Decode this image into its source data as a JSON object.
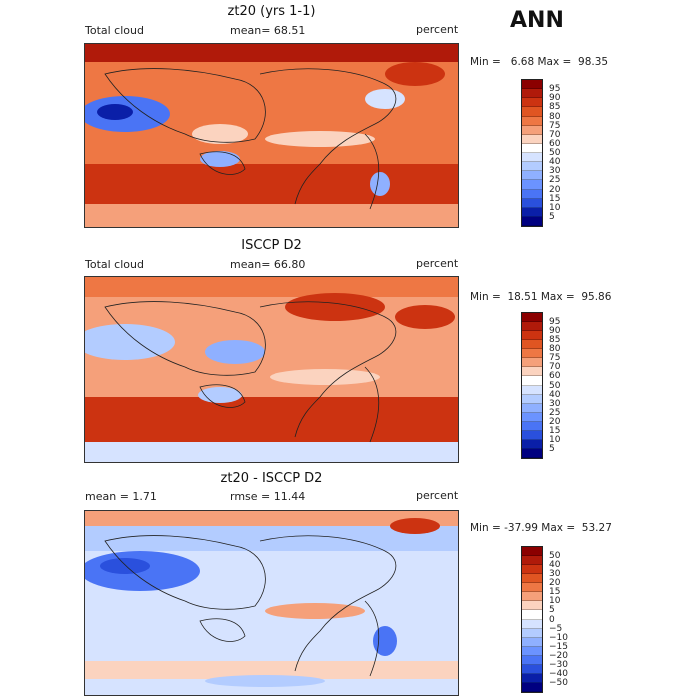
{
  "header": {
    "season": "ANN"
  },
  "panels": [
    {
      "title": "zt20 (yrs 1-1)",
      "left_label": "Total cloud",
      "mid_label": "mean=  68.51",
      "right_label": "percent",
      "minmax": "Min =   6.68 Max =  98.35",
      "legend": [
        "95",
        "90",
        "85",
        "80",
        "75",
        "70",
        "60",
        "50",
        "40",
        "30",
        "25",
        "20",
        "15",
        "10",
        "5"
      ],
      "colors": [
        "#8b0000",
        "#b01a0a",
        "#cc3311",
        "#e05522",
        "#ee7744",
        "#f5a07a",
        "#fbd3bf",
        "#ffffff",
        "#d6e3ff",
        "#b3ccff",
        "#8fb0ff",
        "#6b93ff",
        "#4a74f5",
        "#2a50dd",
        "#0a1fa8",
        "#000080"
      ]
    },
    {
      "title": "ISCCP D2",
      "left_label": "Total cloud",
      "mid_label": "mean=  66.80",
      "right_label": "percent",
      "minmax": "Min =  18.51 Max =  95.86",
      "legend": [
        "95",
        "90",
        "85",
        "80",
        "75",
        "70",
        "60",
        "50",
        "40",
        "30",
        "25",
        "20",
        "15",
        "10",
        "5"
      ],
      "colors": [
        "#8b0000",
        "#b01a0a",
        "#cc3311",
        "#e05522",
        "#ee7744",
        "#f5a07a",
        "#fbd3bf",
        "#ffffff",
        "#d6e3ff",
        "#b3ccff",
        "#8fb0ff",
        "#6b93ff",
        "#4a74f5",
        "#2a50dd",
        "#0a1fa8",
        "#000080"
      ]
    },
    {
      "title": "zt20 - ISCCP D2",
      "left_label": "mean =    1.71",
      "mid_label": "rmse =  11.44",
      "right_label": "percent",
      "minmax": "Min = -37.99 Max =  53.27",
      "legend": [
        "50",
        "40",
        "30",
        "20",
        "15",
        "10",
        "5",
        "0",
        "−5",
        "−10",
        "−15",
        "−20",
        "−30",
        "−40",
        "−50"
      ],
      "colors": [
        "#8b0000",
        "#b01a0a",
        "#cc3311",
        "#e05522",
        "#ee7744",
        "#f5a07a",
        "#fbd3bf",
        "#ffffff",
        "#d6e3ff",
        "#b3ccff",
        "#8fb0ff",
        "#6b93ff",
        "#4a74f5",
        "#2a50dd",
        "#0a1fa8",
        "#000080"
      ]
    }
  ]
}
